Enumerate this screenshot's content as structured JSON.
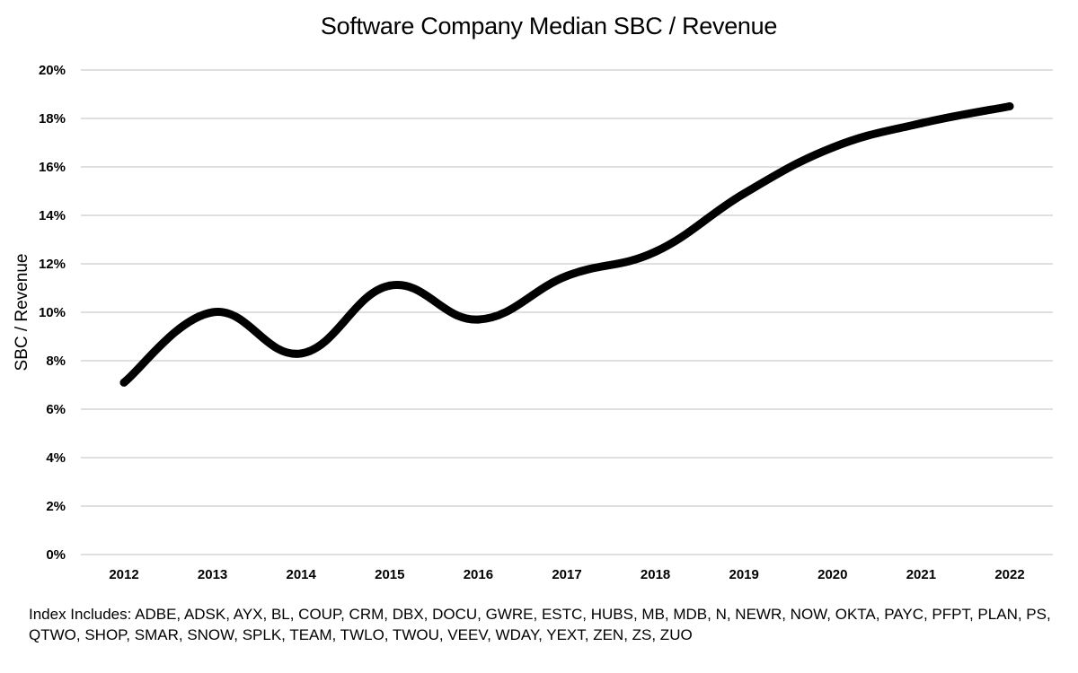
{
  "chart_data": {
    "type": "line",
    "title": "Software Company Median SBC / Revenue",
    "xlabel": "",
    "ylabel": "SBC / Revenue",
    "categories": [
      "2012",
      "2013",
      "2014",
      "2015",
      "2016",
      "2017",
      "2018",
      "2019",
      "2020",
      "2021",
      "2022"
    ],
    "series": [
      {
        "values": [
          7.1,
          10.0,
          8.3,
          11.1,
          9.7,
          11.5,
          12.5,
          14.9,
          16.8,
          17.8,
          18.5
        ]
      }
    ],
    "y_ticks": [
      "0%",
      "2%",
      "4%",
      "6%",
      "8%",
      "10%",
      "12%",
      "14%",
      "16%",
      "18%",
      "20%"
    ],
    "ylim": [
      0,
      20
    ],
    "y_unit": "%",
    "grid": "horizontal",
    "legend": "none",
    "line_color": "#000000",
    "grid_color": "#bfbfbf",
    "smooth": true
  },
  "footnote": "Index Includes: ADBE, ADSK, AYX, BL, COUP, CRM, DBX, DOCU, GWRE, ESTC, HUBS, MB, MDB, N, NEWR, NOW, OKTA, PAYC, PFPT, PLAN, PS, QTWO, SHOP, SMAR, SNOW, SPLK, TEAM, TWLO, TWOU, VEEV, WDAY, YEXT, ZEN, ZS, ZUO"
}
